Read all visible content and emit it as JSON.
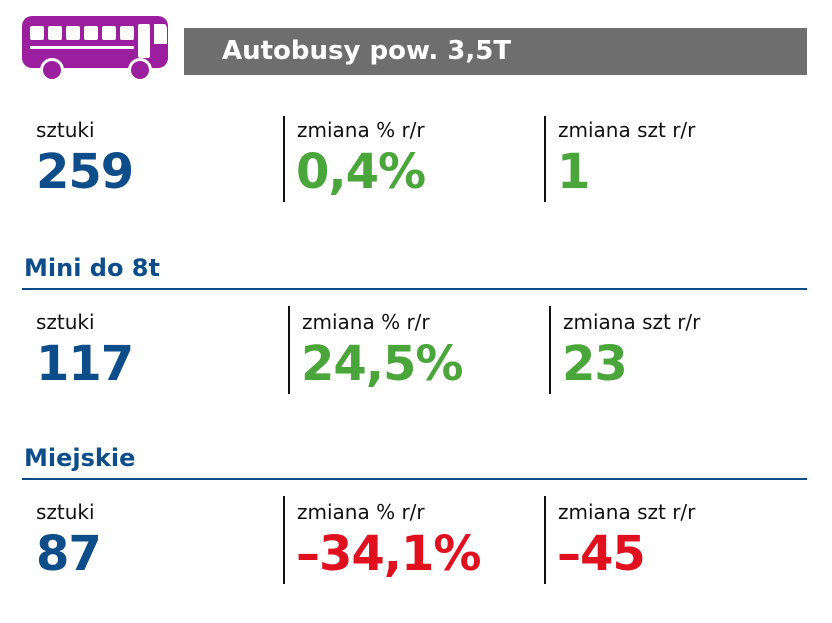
{
  "header": {
    "title": "Autobusy pow. 3,5T",
    "icon": "bus-icon"
  },
  "colors": {
    "icon": "#9b1e9e",
    "banner": "#6e6e6e",
    "blue": "#0c4d8a",
    "green": "#4aa63a",
    "red": "#e0101f"
  },
  "sections": [
    {
      "title": "",
      "stats": [
        {
          "label": "sztuki",
          "value": "259"
        },
        {
          "label": "zmiana % r/r",
          "value": "0,4%"
        },
        {
          "label": "zmiana szt r/r",
          "value": "1"
        }
      ]
    },
    {
      "title": "Mini do 8t",
      "stats": [
        {
          "label": "sztuki",
          "value": "117"
        },
        {
          "label": "zmiana % r/r",
          "value": "24,5%"
        },
        {
          "label": "zmiana szt r/r",
          "value": "23"
        }
      ]
    },
    {
      "title": "Miejskie",
      "stats": [
        {
          "label": "sztuki",
          "value": "87"
        },
        {
          "label": "zmiana % r/r",
          "value": "–34,1%"
        },
        {
          "label": "zmiana szt r/r",
          "value": "–45"
        }
      ]
    }
  ]
}
